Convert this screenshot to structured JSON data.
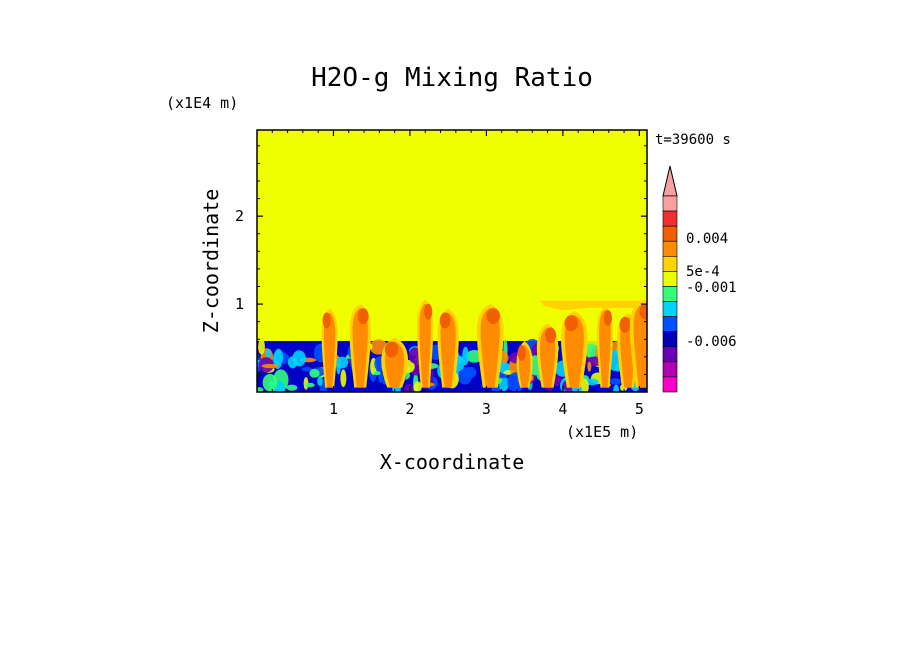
{
  "chart_data": {
    "type": "heatmap",
    "title": "H2O-g Mixing Ratio",
    "xlabel": "X-coordinate",
    "ylabel": "Z-coordinate",
    "x_unit": "(x1E5 m)",
    "y_unit": "(x1E4 m)",
    "time_label": "t=39600 s",
    "xlim": [
      0,
      5.1
    ],
    "ylim": [
      0,
      2.98
    ],
    "x_ticks": [
      1,
      2,
      3,
      4,
      5
    ],
    "y_ticks": [
      1,
      2
    ],
    "x_tick_labels": [
      "1",
      "2",
      "3",
      "4",
      "5"
    ],
    "y_tick_labels": [
      "1",
      "2"
    ],
    "background_color": "#f0ff00",
    "boundary_layer_top": 0.58,
    "plumes": [
      {
        "x": 0.95,
        "top": 0.95
      },
      {
        "x": 1.35,
        "top": 1.0
      },
      {
        "x": 1.8,
        "top": 0.62
      },
      {
        "x": 2.2,
        "top": 1.05
      },
      {
        "x": 2.5,
        "top": 0.95
      },
      {
        "x": 3.05,
        "top": 1.0
      },
      {
        "x": 3.5,
        "top": 0.58
      },
      {
        "x": 3.8,
        "top": 0.78
      },
      {
        "x": 4.15,
        "top": 0.92
      },
      {
        "x": 4.55,
        "top": 0.98
      },
      {
        "x": 4.85,
        "top": 0.9
      },
      {
        "x": 5.05,
        "top": 1.05
      }
    ],
    "colorbar": {
      "tick_labels": [
        "0.004",
        "5e-4",
        "-0.001",
        "-0.006"
      ],
      "colors_top_to_bottom": [
        "#f8a0a0",
        "#f03030",
        "#f06000",
        "#ff8c00",
        "#ffd200",
        "#e8ff00",
        "#32ff78",
        "#00d2ff",
        "#0050ff",
        "#0000b4",
        "#6a00b4",
        "#b400b4",
        "#ff00c8"
      ]
    }
  }
}
